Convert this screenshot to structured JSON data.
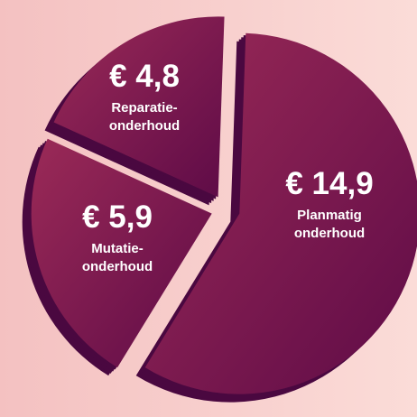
{
  "chart_data": {
    "type": "pie",
    "categories": [
      [
        "Planmatig",
        "onderhoud"
      ],
      [
        "Mutatie-",
        "onderhoud"
      ],
      [
        "Reparatie-",
        "onderhoud"
      ]
    ],
    "values": [
      14.9,
      5.9,
      4.8
    ],
    "value_labels": [
      "€ 14,9",
      "€ 5,9",
      "€ 4,8"
    ],
    "colors": [
      "#9b2a57",
      "#5e0b47"
    ],
    "side_color": "#4a0840"
  }
}
